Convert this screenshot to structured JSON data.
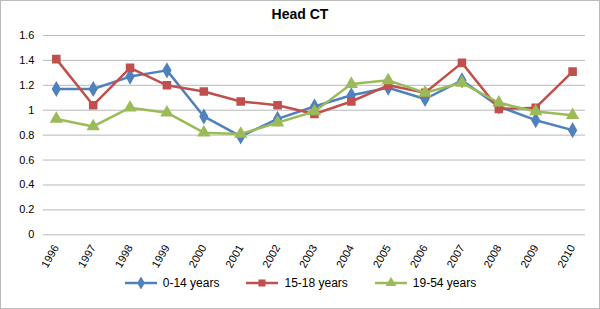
{
  "chart_data": {
    "type": "line",
    "title": "Head CT",
    "categories": [
      "1996",
      "1997",
      "1998",
      "1999",
      "2000",
      "2001",
      "2002",
      "2003",
      "2004",
      "2005",
      "2006",
      "2007",
      "2008",
      "2009",
      "2010"
    ],
    "series": [
      {
        "name": "0-14 years",
        "color": "#4f81bd",
        "marker": "diamond",
        "values": [
          1.17,
          1.17,
          1.27,
          1.32,
          0.95,
          0.79,
          0.93,
          1.03,
          1.12,
          1.18,
          1.09,
          1.24,
          1.03,
          0.92,
          0.84
        ]
      },
      {
        "name": "15-18 years",
        "color": "#c0504d",
        "marker": "square",
        "values": [
          1.41,
          1.04,
          1.34,
          1.2,
          1.15,
          1.07,
          1.04,
          0.97,
          1.07,
          1.2,
          1.14,
          1.38,
          1.01,
          1.02,
          1.31
        ]
      },
      {
        "name": "19-54 years",
        "color": "#9bbb59",
        "marker": "triangle",
        "values": [
          0.93,
          0.87,
          1.02,
          0.98,
          0.82,
          0.81,
          0.9,
          0.99,
          1.21,
          1.24,
          1.14,
          1.22,
          1.06,
          0.99,
          0.96
        ]
      }
    ],
    "ylim": [
      0,
      1.6
    ],
    "yticks": [
      0,
      0.2,
      0.4,
      0.6,
      0.8,
      1,
      1.2,
      1.4,
      1.6
    ],
    "grid": true,
    "legend": "bottom"
  }
}
